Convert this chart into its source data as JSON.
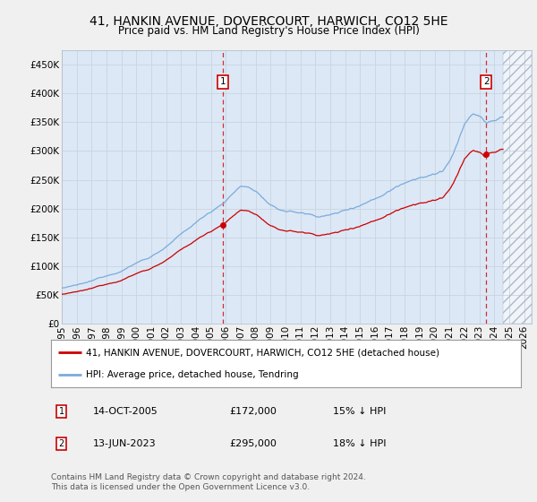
{
  "title": "41, HANKIN AVENUE, DOVERCOURT, HARWICH, CO12 5HE",
  "subtitle": "Price paid vs. HM Land Registry's House Price Index (HPI)",
  "ylim": [
    0,
    475000
  ],
  "yticks": [
    0,
    50000,
    100000,
    150000,
    200000,
    250000,
    300000,
    350000,
    400000,
    450000
  ],
  "ytick_labels": [
    "£0",
    "£50K",
    "£100K",
    "£150K",
    "£200K",
    "£250K",
    "£300K",
    "£350K",
    "£400K",
    "£450K"
  ],
  "xlim_start": 1995.0,
  "xlim_end": 2026.5,
  "xticks": [
    1995,
    1996,
    1997,
    1998,
    1999,
    2000,
    2001,
    2002,
    2003,
    2004,
    2005,
    2006,
    2007,
    2008,
    2009,
    2010,
    2011,
    2012,
    2013,
    2014,
    2015,
    2016,
    2017,
    2018,
    2019,
    2020,
    2021,
    2022,
    2023,
    2024,
    2025,
    2026
  ],
  "plot_bg_color": "#dce8f5",
  "fig_bg_color": "#f0f0f0",
  "hatch_start": 2024.58,
  "marker1_x": 2005.79,
  "marker1_y": 172000,
  "marker1_label": "1",
  "marker1_date": "14-OCT-2005",
  "marker1_price": "£172,000",
  "marker1_hpi": "15% ↓ HPI",
  "marker2_x": 2023.45,
  "marker2_y": 295000,
  "marker2_label": "2",
  "marker2_date": "13-JUN-2023",
  "marker2_price": "£295,000",
  "marker2_hpi": "18% ↓ HPI",
  "legend_line1": "41, HANKIN AVENUE, DOVERCOURT, HARWICH, CO12 5HE (detached house)",
  "legend_line2": "HPI: Average price, detached house, Tendring",
  "footer": "Contains HM Land Registry data © Crown copyright and database right 2024.\nThis data is licensed under the Open Government Licence v3.0.",
  "red_color": "#cc0000",
  "blue_color": "#7aabdc",
  "title_fontsize": 10,
  "subtitle_fontsize": 8.5,
  "tick_fontsize": 7.5,
  "legend_fontsize": 7.5,
  "table_fontsize": 8,
  "footer_fontsize": 6.5
}
